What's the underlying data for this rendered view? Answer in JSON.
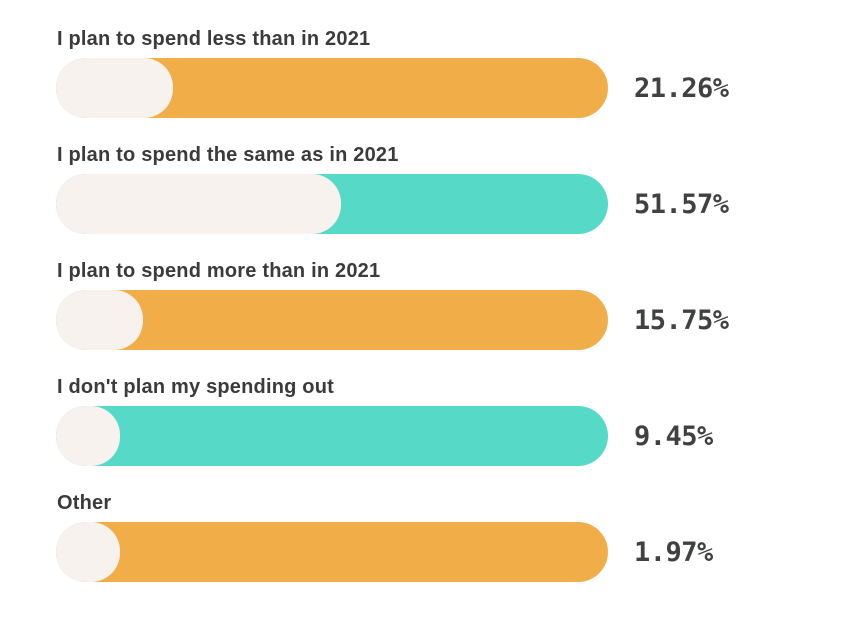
{
  "chart_data": {
    "type": "bar",
    "orientation": "horizontal",
    "unit": "%",
    "categories": [
      "I plan to spend less than in 2021",
      "I plan to spend the same as in 2021",
      "I plan to spend more than in 2021",
      "I don't plan my spending out",
      "Other"
    ],
    "values": [
      21.26,
      51.57,
      15.75,
      9.45,
      1.97
    ],
    "display_values": [
      "21.26%",
      "51.57%",
      "15.75%",
      "9.45%",
      "1.97%"
    ],
    "bar_colors": [
      "#F1AD47",
      "#56D9C6",
      "#F1AD47",
      "#56D9C6",
      "#F1AD47"
    ],
    "fill_color": "#F7F2ED",
    "label_color": "#3B3B3B",
    "value_color": "#404141",
    "xlim": [
      0,
      100
    ],
    "grid": false,
    "legend": false
  }
}
